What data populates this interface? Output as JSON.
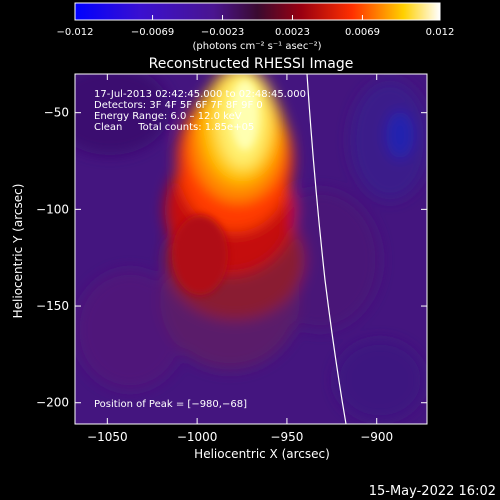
{
  "colorbar": {
    "tick_labels": [
      "−0.012",
      "−0.0069",
      "−0.0023",
      "0.0023",
      "0.0069",
      "0.012"
    ],
    "tick_values": [
      -0.012,
      -0.0069,
      -0.0023,
      0.0023,
      0.0069,
      0.012
    ],
    "range": [
      -0.012,
      0.012
    ],
    "unit_label": "(photons cm⁻² s⁻¹ asec⁻²)"
  },
  "plot": {
    "title": "Reconstructed RHESSI Image",
    "xlabel": "Heliocentric X (arcsec)",
    "ylabel": "Heliocentric Y (arcsec)",
    "xlim": [
      -1068,
      -872
    ],
    "ylim": [
      -211,
      -30
    ],
    "x_ticks": [
      -1050,
      -1000,
      -950,
      -900
    ],
    "x_tick_labels": [
      "−1050",
      "−1000",
      "−950",
      "−900"
    ],
    "y_ticks": [
      -50,
      -100,
      -150,
      -200
    ],
    "y_tick_labels": [
      "−50",
      "−100",
      "−150",
      "−200"
    ],
    "info_lines": [
      "17-Jul-2013 02:42:45.000 to 02:48:45.000",
      "Detectors: 3F 4F 5F 6F 7F 8F 9F 0",
      "Energy Range: 6.0 – 12.0 keV",
      "Clean     Total counts: 1.85e+05"
    ],
    "peak_label": "Position of Peak = [−980,−68]",
    "peak_position": [
      -980,
      -68
    ],
    "limb_color": "#ffffff"
  },
  "footer": {
    "timestamp": "15-May-2022 16:02"
  },
  "palette": {
    "low": "#0000ff",
    "background_purple": "#44157f",
    "mid": "#c00000",
    "high": "#ffffff"
  }
}
